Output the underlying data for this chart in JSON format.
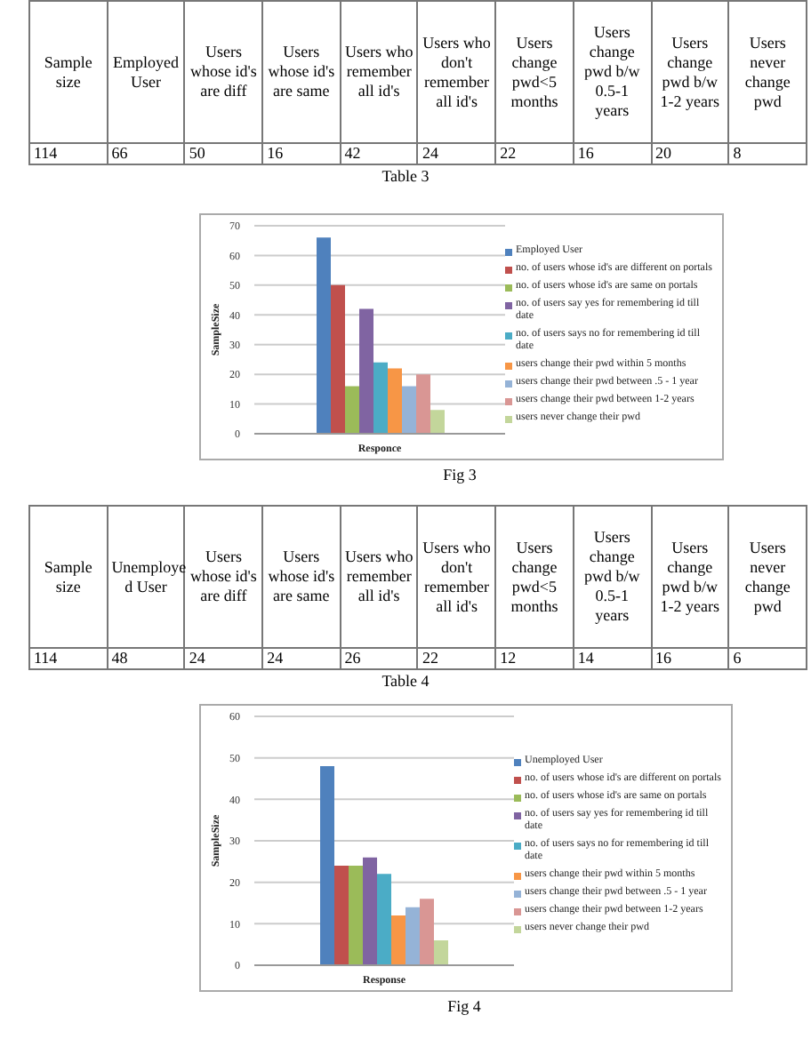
{
  "chart_data": [
    {
      "type": "bar",
      "categories": [
        null
      ],
      "ylabel": "SampleSize",
      "xlabel": "Responce",
      "ylim": [
        0,
        70
      ],
      "yticks": [
        0,
        10,
        20,
        30,
        40,
        50,
        60,
        70
      ],
      "grid": "y",
      "legend": "right",
      "series": [
        {
          "name": "Employed User",
          "color": "#4f81bd",
          "values": [
            66
          ]
        },
        {
          "name": "no. of users whose id's are different on portals",
          "color": "#c0504d",
          "values": [
            50
          ]
        },
        {
          "name": "no. of users whose id's are same on portals",
          "color": "#9bbb59",
          "values": [
            16
          ]
        },
        {
          "name": "no. of users say yes for remembering id  till date",
          "color": "#8064a2",
          "values": [
            42
          ]
        },
        {
          "name": "no. of users says no for remembering id  till date",
          "color": "#4bacc6",
          "values": [
            24
          ]
        },
        {
          "name": "users change their pwd within 5 months",
          "color": "#f79646",
          "values": [
            22
          ]
        },
        {
          "name": "users change their pwd between .5 - 1  year",
          "color": "#95b3d7",
          "values": [
            16
          ]
        },
        {
          "name": "users change their pwd between 1-2 years",
          "color": "#d99694",
          "values": [
            20
          ]
        },
        {
          "name": "users never change their pwd",
          "color": "#c3d69b",
          "values": [
            8
          ]
        }
      ],
      "annotations": [
        "Sample size",
        "Employed User",
        "Users whose id's are diff",
        "Users whose id's are same",
        "Users who remember all id's",
        "Users who don't remember all id's",
        "Users change pwd<5 months",
        "Users change pwd b/w 0.5-1 years",
        "Users change pwd b/w  1-2 years",
        "Users never change pwd",
        "114",
        "66",
        "50",
        "16",
        "42",
        "24",
        "22",
        "16",
        "20",
        "8",
        "Table 3",
        "Fig 3"
      ]
    },
    {
      "type": "bar",
      "categories": [
        null
      ],
      "ylabel": "SampleSize",
      "xlabel": "Response",
      "ylim": [
        0,
        60
      ],
      "yticks": [
        0,
        10,
        20,
        30,
        40,
        50,
        60
      ],
      "grid": "y",
      "legend": "right",
      "series": [
        {
          "name": "Unemployed User",
          "color": "#4f81bd",
          "values": [
            48
          ]
        },
        {
          "name": "no. of users whose id's are different on portals",
          "color": "#c0504d",
          "values": [
            24
          ]
        },
        {
          "name": "no. of users whose id's are same on portals",
          "color": "#9bbb59",
          "values": [
            24
          ]
        },
        {
          "name": "no. of users say yes for remembering id  till date",
          "color": "#8064a2",
          "values": [
            26
          ]
        },
        {
          "name": "no. of users says no for remembering id  till date",
          "color": "#4bacc6",
          "values": [
            22
          ]
        },
        {
          "name": "users change their pwd within 5 months",
          "color": "#f79646",
          "values": [
            12
          ]
        },
        {
          "name": "users change their pwd between .5 - 1  year",
          "color": "#95b3d7",
          "values": [
            14
          ]
        },
        {
          "name": "users change their pwd between 1-2 years",
          "color": "#d99694",
          "values": [
            16
          ]
        },
        {
          "name": "users never change their pwd",
          "color": "#c3d69b",
          "values": [
            6
          ]
        }
      ],
      "annotations": [
        "Sample size",
        "Unemploye d User",
        "Users whose id's are diff",
        "Users whose id's are same",
        "Users who remember all id's",
        "Users who don't remember all id's",
        "Users change pwd<5 months",
        "Users change pwd b/w 0.5-1 years",
        "Users change pwd b/w  1-2 years",
        "Users never change pwd",
        "114",
        "48",
        "24",
        "24",
        "26",
        "22",
        "12",
        "14",
        "16",
        "6",
        "Table 4",
        "Fig 4"
      ]
    }
  ]
}
